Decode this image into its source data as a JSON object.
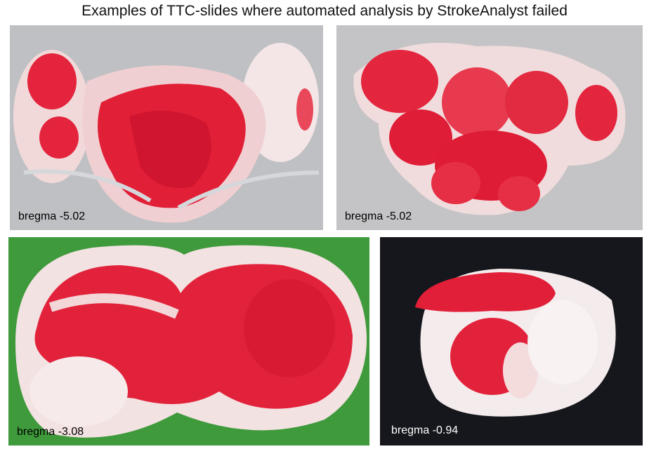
{
  "title": "Examples of TTC-slides where automated analysis by StrokeAnalyst failed",
  "panels": [
    {
      "label": "bregma -5.02",
      "background": "#bfc0c3"
    },
    {
      "label": "bregma -5.02",
      "background": "#c4c4c6"
    },
    {
      "label": "bregma -3.08",
      "background": "#3f9a3c"
    },
    {
      "label": "bregma -0.94",
      "background": "#15171c"
    }
  ],
  "colors": {
    "tissue_red": "#e0233a",
    "tissue_pale": "#f2dede"
  }
}
